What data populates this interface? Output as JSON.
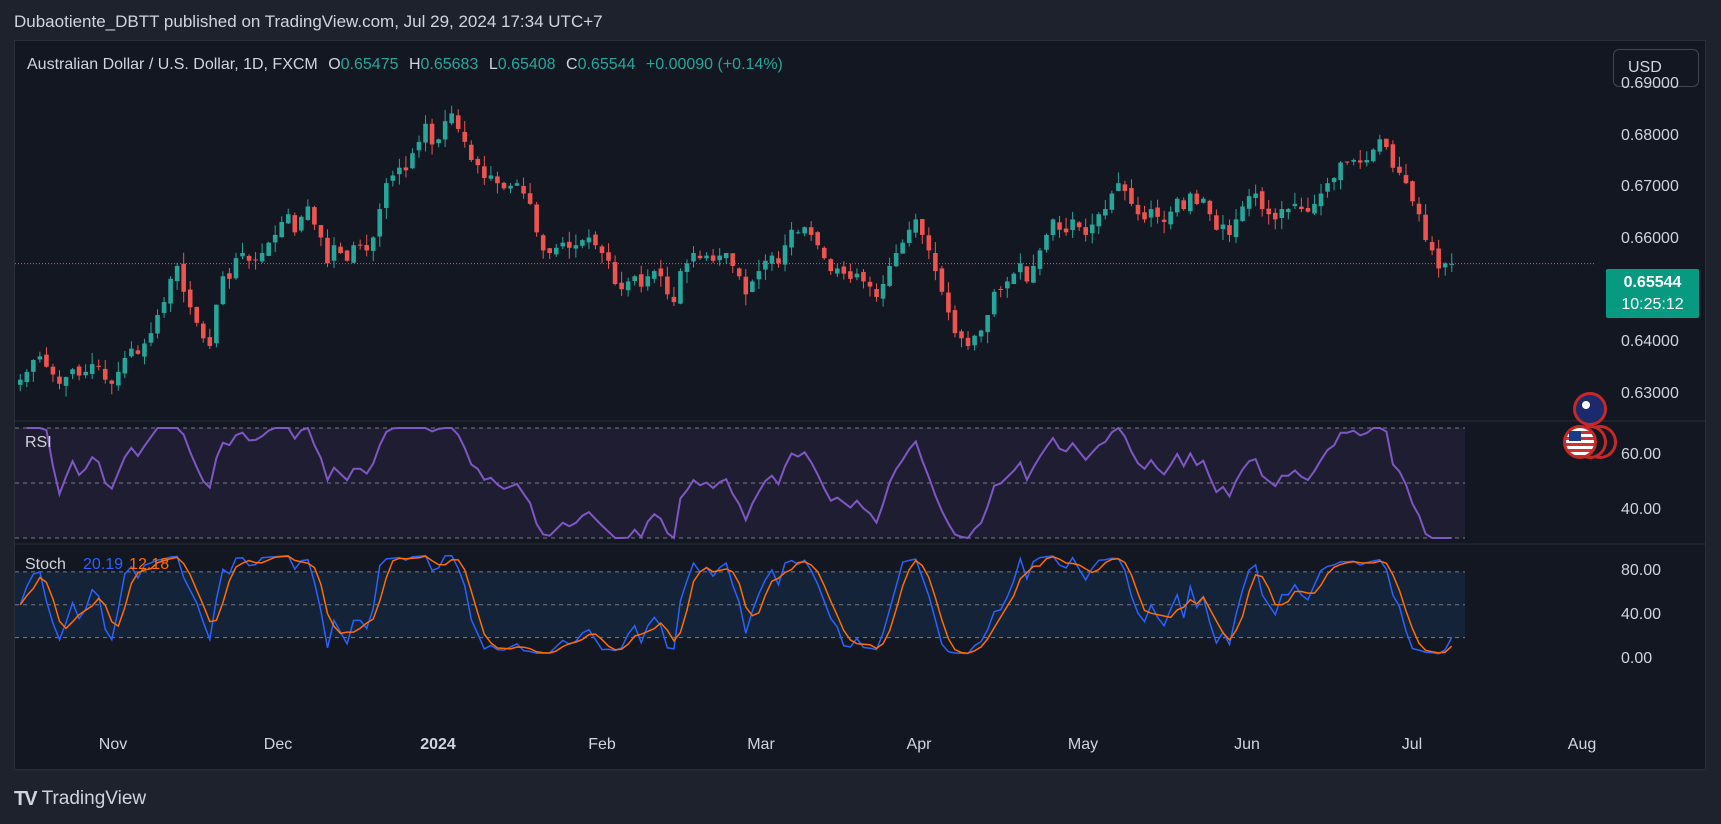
{
  "header": {
    "publisher_text": "Dubaotiente_DBTT published on TradingView.com, Jul 29, 2024 17:34 UTC+7"
  },
  "legend": {
    "symbol": "Australian Dollar / U.S. Dollar, 1D, FXCM",
    "open_label": "O",
    "open": "0.65475",
    "high_label": "H",
    "high": "0.65683",
    "low_label": "L",
    "low": "0.65408",
    "close_label": "C",
    "close": "0.65544",
    "change": "+0.00090 (+0.14%)"
  },
  "currency_button": "USD",
  "last_price": {
    "value": "0.65544",
    "countdown": "10:25:12"
  },
  "price_axis": [
    "0.69000",
    "0.68000",
    "0.67000",
    "0.66000",
    "0.64000",
    "0.63000"
  ],
  "rsi": {
    "label": "RSI",
    "axis": [
      "60.00",
      "40.00"
    ]
  },
  "stoch": {
    "label": "Stoch",
    "k": "20.19",
    "d": "12.18",
    "axis": [
      "80.00",
      "40.00",
      "0.00"
    ]
  },
  "time_axis": [
    {
      "label": "Nov",
      "bold": false
    },
    {
      "label": "Dec",
      "bold": false
    },
    {
      "label": "2024",
      "bold": true
    },
    {
      "label": "Feb",
      "bold": false
    },
    {
      "label": "Mar",
      "bold": false
    },
    {
      "label": "Apr",
      "bold": false
    },
    {
      "label": "May",
      "bold": false
    },
    {
      "label": "Jun",
      "bold": false
    },
    {
      "label": "Jul",
      "bold": false
    },
    {
      "label": "Aug",
      "bold": false
    }
  ],
  "footer": {
    "brand": "TradingView",
    "logo": "TV"
  },
  "colors": {
    "up": "#26a69a",
    "down": "#ef5350",
    "rsi": "#7e57c2",
    "stoch_k": "#2962ff",
    "stoch_d": "#ff6d00",
    "background": "#131722"
  },
  "chart_data": {
    "type": "candlestick",
    "symbol": "AUDUSD",
    "timeframe": "1D",
    "price_range": [
      0.625,
      0.69
    ],
    "last_close": 0.65544,
    "close_series": [
      0.633,
      0.6345,
      0.6368,
      0.6375,
      0.6355,
      0.634,
      0.6322,
      0.6335,
      0.635,
      0.6338,
      0.6345,
      0.636,
      0.6355,
      0.633,
      0.6322,
      0.6345,
      0.6372,
      0.639,
      0.638,
      0.64,
      0.642,
      0.6455,
      0.648,
      0.6525,
      0.655,
      0.65,
      0.647,
      0.644,
      0.641,
      0.6395,
      0.6475,
      0.653,
      0.6525,
      0.6565,
      0.6575,
      0.656,
      0.6562,
      0.6575,
      0.6595,
      0.661,
      0.6635,
      0.665,
      0.6615,
      0.6645,
      0.6665,
      0.663,
      0.6605,
      0.6555,
      0.659,
      0.6575,
      0.656,
      0.659,
      0.659,
      0.658,
      0.6605,
      0.666,
      0.671,
      0.6725,
      0.674,
      0.6735,
      0.6768,
      0.679,
      0.6825,
      0.6785,
      0.6795,
      0.683,
      0.6845,
      0.6815,
      0.679,
      0.6755,
      0.6745,
      0.672,
      0.6725,
      0.671,
      0.67,
      0.6705,
      0.671,
      0.669,
      0.667,
      0.6615,
      0.658,
      0.6575,
      0.6585,
      0.6595,
      0.6585,
      0.659,
      0.66,
      0.6605,
      0.659,
      0.6575,
      0.656,
      0.6515,
      0.6505,
      0.652,
      0.653,
      0.651,
      0.653,
      0.654,
      0.653,
      0.6495,
      0.648,
      0.654,
      0.6555,
      0.6575,
      0.6565,
      0.657,
      0.656,
      0.657,
      0.6575,
      0.655,
      0.653,
      0.6495,
      0.652,
      0.654,
      0.656,
      0.657,
      0.6555,
      0.659,
      0.662,
      0.6615,
      0.6625,
      0.661,
      0.659,
      0.6565,
      0.654,
      0.6545,
      0.6535,
      0.6525,
      0.6535,
      0.652,
      0.651,
      0.649,
      0.6515,
      0.655,
      0.6575,
      0.6595,
      0.662,
      0.664,
      0.661,
      0.658,
      0.654,
      0.65,
      0.646,
      0.642,
      0.641,
      0.6395,
      0.6415,
      0.6425,
      0.6455,
      0.65,
      0.6505,
      0.652,
      0.6535,
      0.6555,
      0.652,
      0.655,
      0.658,
      0.661,
      0.664,
      0.662,
      0.6615,
      0.664,
      0.6625,
      0.661,
      0.663,
      0.665,
      0.666,
      0.669,
      0.671,
      0.6695,
      0.667,
      0.665,
      0.664,
      0.666,
      0.6645,
      0.6635,
      0.6655,
      0.668,
      0.666,
      0.669,
      0.667,
      0.668,
      0.665,
      0.662,
      0.663,
      0.661,
      0.664,
      0.6665,
      0.6685,
      0.669,
      0.666,
      0.665,
      0.664,
      0.666,
      0.666,
      0.667,
      0.666,
      0.6655,
      0.667,
      0.669,
      0.671,
      0.672,
      0.675,
      0.675,
      0.6755,
      0.675,
      0.6755,
      0.6775,
      0.6795,
      0.678,
      0.674,
      0.673,
      0.671,
      0.6675,
      0.665,
      0.66,
      0.658,
      0.6545,
      0.6555,
      0.6554
    ],
    "rsi_range": [
      30,
      70
    ],
    "rsi_levels": [
      70,
      50,
      30
    ],
    "stoch_range": [
      -5,
      100
    ],
    "stoch_levels": [
      80,
      50,
      20
    ],
    "stoch_last": {
      "k": 20.19,
      "d": 12.18
    }
  }
}
